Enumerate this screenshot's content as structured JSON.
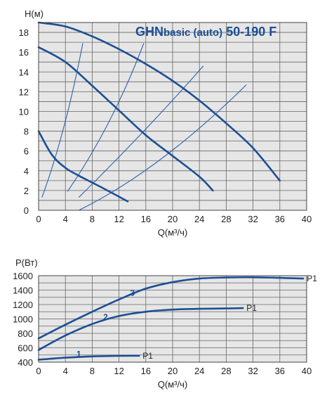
{
  "chart_data": [
    {
      "type": "line",
      "title": {
        "prefix": "GHN",
        "middle": "basic (auto)",
        "suffix": " 50-190 F"
      },
      "ylabel": "H(м)",
      "xlabel": "Q(м³/ч)",
      "xlim": [
        0,
        40
      ],
      "ylim": [
        0,
        19
      ],
      "x_ticks": [
        0,
        4,
        8,
        12,
        16,
        20,
        24,
        28,
        32,
        36,
        40
      ],
      "y_ticks": [
        0,
        2,
        4,
        6,
        8,
        10,
        12,
        14,
        16,
        18
      ],
      "grid": true,
      "colors": {
        "curve": "#1c4f94",
        "thin": "#2c63ad",
        "grid": "#666666",
        "plot_bg": "#e6e6e6",
        "title": "#1c4f94"
      },
      "series": [
        {
          "points": [
            [
              0,
              19
            ],
            [
              4,
              18.6
            ],
            [
              8,
              17.6
            ],
            [
              12,
              16.3
            ],
            [
              16,
              14.8
            ],
            [
              20,
              13.1
            ],
            [
              24,
              11.1
            ],
            [
              28,
              8.8
            ],
            [
              32,
              6.3
            ],
            [
              36,
              3.0
            ]
          ]
        },
        {
          "points": [
            [
              0,
              16.5
            ],
            [
              4,
              15.0
            ],
            [
              8,
              12.6
            ],
            [
              12,
              10.1
            ],
            [
              16,
              7.6
            ],
            [
              20,
              5.5
            ],
            [
              24,
              3.4
            ],
            [
              26,
              2.0
            ]
          ]
        },
        {
          "points": [
            [
              0,
              8.0
            ],
            [
              2,
              5.6
            ],
            [
              4,
              4.3
            ],
            [
              6,
              3.5
            ],
            [
              8,
              2.8
            ],
            [
              10,
              2.1
            ],
            [
              13.3,
              0.9
            ]
          ]
        }
      ],
      "system_curves": [
        {
          "points": [
            [
              0.5,
              1.3
            ],
            [
              4,
              7.8
            ],
            [
              6.6,
              16.9
            ]
          ]
        },
        {
          "points": [
            [
              4.3,
              1.9
            ],
            [
              11,
              8.5
            ],
            [
              15.7,
              16.9
            ]
          ]
        },
        {
          "points": [
            [
              6,
              1.3
            ],
            [
              16,
              8
            ],
            [
              24.6,
              14.6
            ]
          ]
        },
        {
          "points": [
            [
              6,
              0
            ],
            [
              18,
              4
            ],
            [
              31,
              12.7
            ]
          ]
        }
      ]
    },
    {
      "type": "line",
      "ylabel": "P(Вт)",
      "xlabel": "Q(м³/ч)",
      "xlim": [
        0,
        40
      ],
      "ylim": [
        400,
        1600
      ],
      "x_ticks": [
        0,
        4,
        8,
        12,
        16,
        20,
        24,
        28,
        32,
        36,
        40
      ],
      "y_ticks": [
        400,
        600,
        800,
        1000,
        1200,
        1400,
        1600
      ],
      "grid": true,
      "series": [
        {
          "name": "1",
          "end_label": "P1",
          "label_at": [
            6,
            475
          ],
          "points": [
            [
              0,
              435
            ],
            [
              4,
              462
            ],
            [
              8,
              480
            ],
            [
              12,
              488
            ],
            [
              15,
              490
            ]
          ]
        },
        {
          "name": "2",
          "end_label": "P1",
          "label_at": [
            10,
            985
          ],
          "points": [
            [
              0,
              570
            ],
            [
              4,
              770
            ],
            [
              8,
              930
            ],
            [
              12,
              1040
            ],
            [
              16,
              1100
            ],
            [
              20,
              1130
            ],
            [
              24,
              1140
            ],
            [
              28,
              1145
            ],
            [
              30.5,
              1150
            ]
          ]
        },
        {
          "name": "3",
          "end_label": "P1",
          "label_at": [
            14,
            1320
          ],
          "points": [
            [
              0,
              730
            ],
            [
              4,
              920
            ],
            [
              8,
              1100
            ],
            [
              12,
              1270
            ],
            [
              16,
              1420
            ],
            [
              20,
              1510
            ],
            [
              24,
              1560
            ],
            [
              28,
              1575
            ],
            [
              32,
              1578
            ],
            [
              36,
              1570
            ],
            [
              39.5,
              1560
            ]
          ]
        }
      ]
    }
  ]
}
